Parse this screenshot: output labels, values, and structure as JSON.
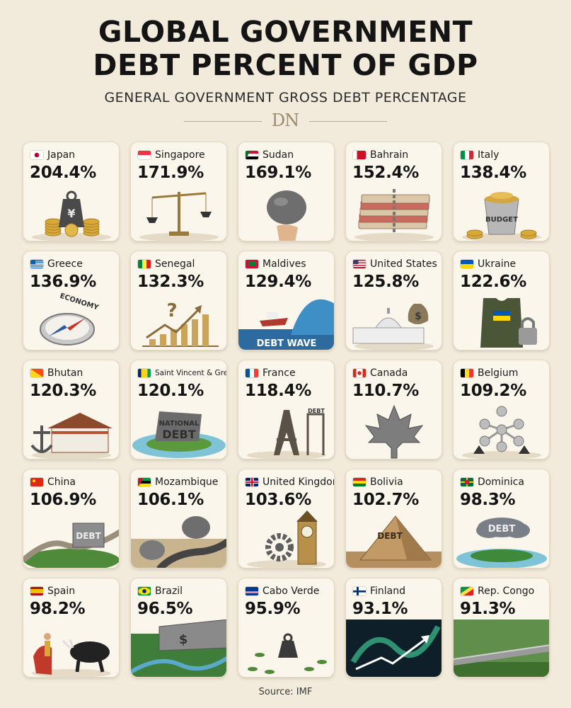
{
  "chart_data": {
    "type": "table",
    "title": "GLOBAL GOVERNMENT DEBT PERCENT OF GDP",
    "subtitle": "GENERAL GOVERNMENT GROSS DEBT PERCENTAGE",
    "logo": "DN",
    "source": "Source: IMF",
    "categories": [
      "Japan",
      "Singapore",
      "Sudan",
      "Bahrain",
      "Italy",
      "Greece",
      "Senegal",
      "Maldives",
      "United States",
      "Ukraine",
      "Bhutan",
      "Saint Vincent & Gren.",
      "France",
      "Canada",
      "Belgium",
      "China",
      "Mozambique",
      "United Kingdom",
      "Bolivia",
      "Dominica",
      "Spain",
      "Brazil",
      "Cabo Verde",
      "Finland",
      "Rep. Congo"
    ],
    "values": [
      204.4,
      171.9,
      169.1,
      152.4,
      138.4,
      136.9,
      132.3,
      129.4,
      125.8,
      122.6,
      120.3,
      120.1,
      118.4,
      110.7,
      109.2,
      106.9,
      106.1,
      103.6,
      102.7,
      98.3,
      98.2,
      96.5,
      95.9,
      93.1,
      91.3
    ],
    "value_labels": [
      "204.4%",
      "171.9%",
      "169.1%",
      "152.4%",
      "138.4%",
      "136.9%",
      "132.3%",
      "129.4%",
      "125.8%",
      "122.6%",
      "120.3%",
      "120.1%",
      "118.4%",
      "110.7%",
      "109.2%",
      "106.9%",
      "106.1%",
      "103.6%",
      "102.7%",
      "98.3%",
      "98.2%",
      "96.5%",
      "95.9%",
      "93.1%",
      "91.3%"
    ],
    "flag_icons": [
      "japan-flag-icon",
      "singapore-flag-icon",
      "sudan-flag-icon",
      "bahrain-flag-icon",
      "italy-flag-icon",
      "greece-flag-icon",
      "senegal-flag-icon",
      "maldives-flag-icon",
      "united-states-flag-icon",
      "ukraine-flag-icon",
      "bhutan-flag-icon",
      "saint-vincent-flag-icon",
      "france-flag-icon",
      "canada-flag-icon",
      "belgium-flag-icon",
      "china-flag-icon",
      "mozambique-flag-icon",
      "united-kingdom-flag-icon",
      "bolivia-flag-icon",
      "dominica-flag-icon",
      "spain-flag-icon",
      "brazil-flag-icon",
      "cabo-verde-flag-icon",
      "finland-flag-icon",
      "rep-congo-flag-icon"
    ],
    "illustration_icons": [
      "yen-weight-coins-icon",
      "scales-icon",
      "boulder-hand-icon",
      "chained-banknotes-icon",
      "budget-bucket-coins-icon",
      "economy-compass-icon",
      "question-rising-chart-icon",
      "debt-wave-ship-icon",
      "capitol-money-bag-icon",
      "armored-vest-padlock-icon",
      "dzong-anchor-icon",
      "national-debt-island-icon",
      "eiffel-tower-debt-crane-icon",
      "silver-maple-leaf-icon",
      "atomium-weights-icon",
      "great-wall-debt-block-icon",
      "boulders-road-icon",
      "big-ben-gear-icon",
      "debt-pyramid-icon",
      "debt-cloud-island-icon",
      "matador-bull-icon",
      "dollar-wall-rainforest-icon",
      "weight-islands-icon",
      "aurora-rising-chart-icon",
      "rainforest-pipeline-icon"
    ],
    "illustration_text": {
      "Italy": "BUDGET",
      "Greece": "ECONOMY",
      "Maldives": "DEBT WAVE",
      "Saint Vincent & Gren.": "NATIONAL DEBT",
      "France": "DEBT",
      "China": "DEBT",
      "Bolivia": "DEBT",
      "Dominica": "DEBT",
      "Japan": "¥",
      "United States": "$",
      "Brazil": "$"
    },
    "layout": "5x5 grid of cards, sorted descending"
  },
  "colors": {
    "background": "#f2ebdc",
    "card": "#faf6ec",
    "text": "#141414"
  }
}
